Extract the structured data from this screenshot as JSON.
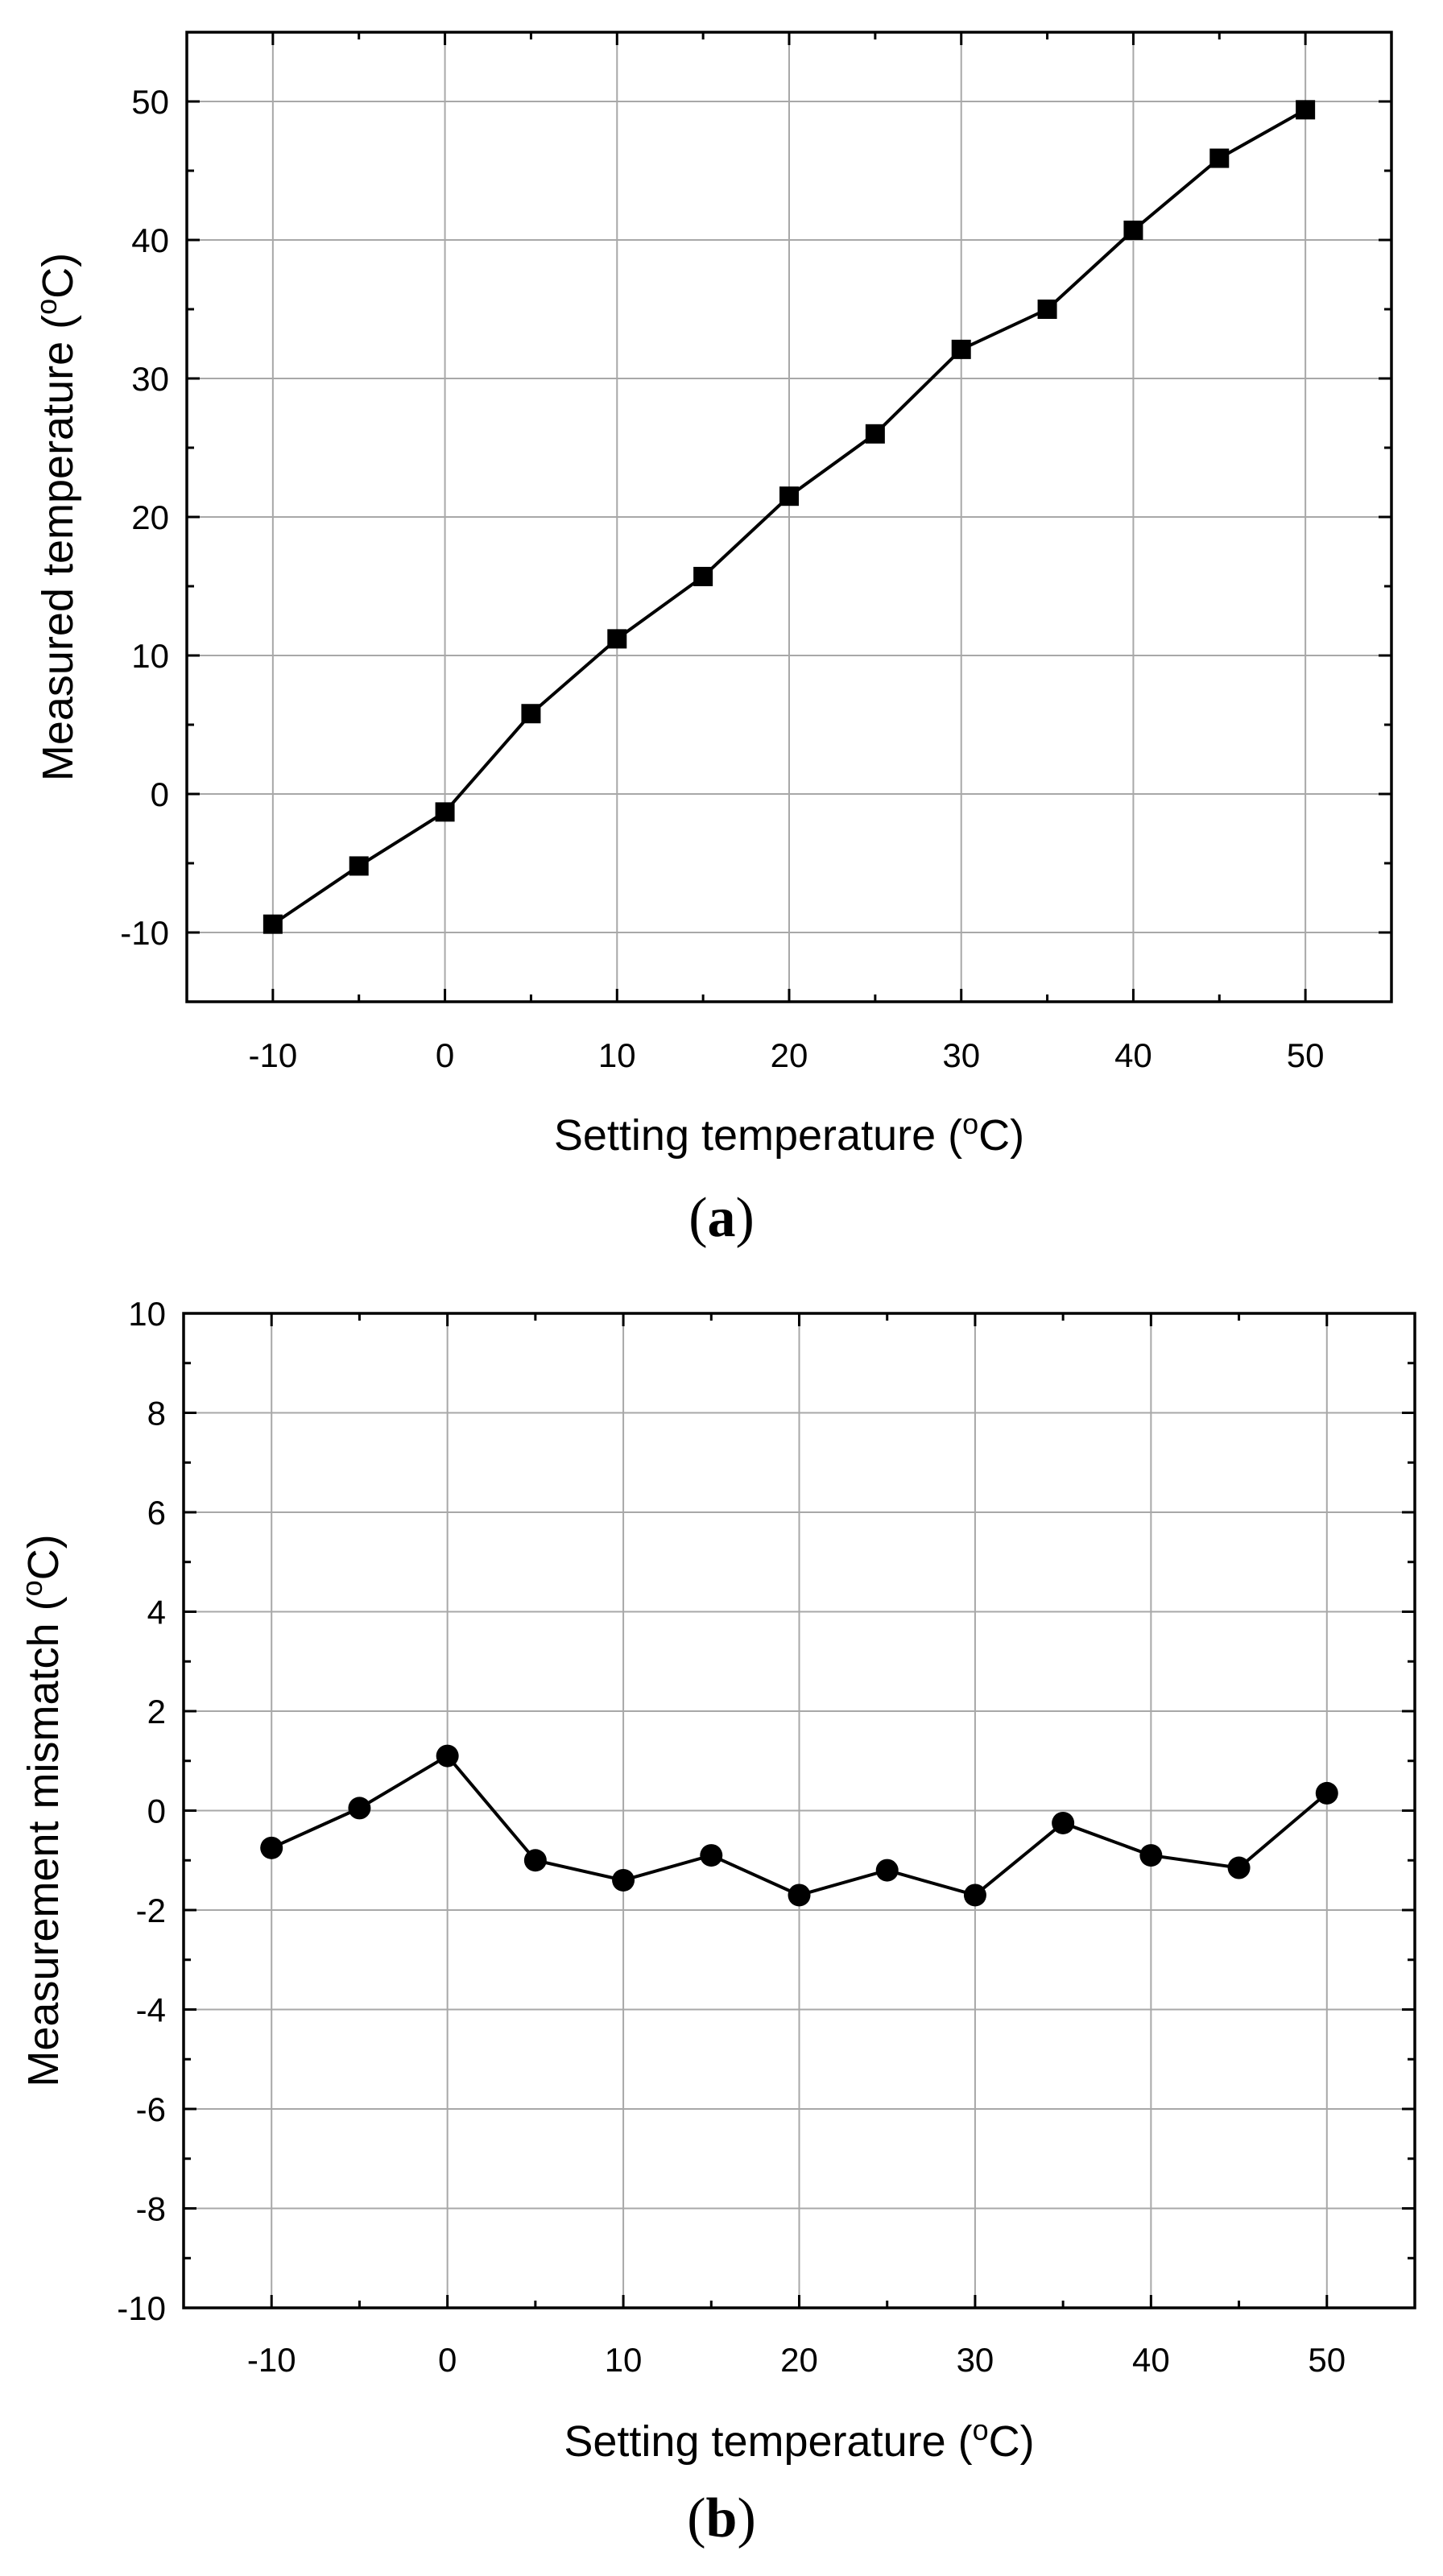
{
  "chart_data": [
    {
      "type": "line",
      "panel_label": "a",
      "xlabel": "Setting temperature (",
      "ylabel": "Measured temperature (",
      "unit_sup": "o",
      "unit_suffix": "C)",
      "xlim": [
        -15,
        55
      ],
      "ylim": [
        -15,
        55
      ],
      "xticks": [
        -10,
        0,
        10,
        20,
        30,
        40,
        50
      ],
      "yticks": [
        -10,
        0,
        10,
        20,
        30,
        40,
        50
      ],
      "grid": true,
      "marker": "square",
      "series": [
        {
          "name": "Measured temperature",
          "x": [
            -10,
            -5,
            0,
            5,
            10,
            15,
            20,
            25,
            30,
            35,
            40,
            45,
            50
          ],
          "y": [
            -9.4,
            -5.2,
            -1.3,
            5.8,
            11.2,
            15.7,
            21.5,
            26.0,
            32.1,
            35.0,
            40.7,
            45.9,
            49.4
          ]
        }
      ]
    },
    {
      "type": "line",
      "panel_label": "b",
      "xlabel": "Setting temperature (",
      "ylabel": "Measurement mismatch (",
      "unit_sup": "o",
      "unit_suffix": "C)",
      "xlim": [
        -15,
        55
      ],
      "ylim": [
        -10,
        10
      ],
      "xticks": [
        -10,
        0,
        10,
        20,
        30,
        40,
        50
      ],
      "yticks": [
        -10,
        -8,
        -6,
        -4,
        -2,
        0,
        2,
        4,
        6,
        8,
        10
      ],
      "grid": true,
      "marker": "circle",
      "series": [
        {
          "name": "Measurement mismatch",
          "x": [
            -10,
            -5,
            0,
            5,
            10,
            15,
            20,
            25,
            30,
            35,
            40,
            45,
            50
          ],
          "y": [
            -0.75,
            0.05,
            1.1,
            -1.0,
            -1.4,
            -0.9,
            -1.7,
            -1.2,
            -1.7,
            -0.25,
            -0.9,
            -1.15,
            0.35
          ]
        }
      ]
    }
  ]
}
